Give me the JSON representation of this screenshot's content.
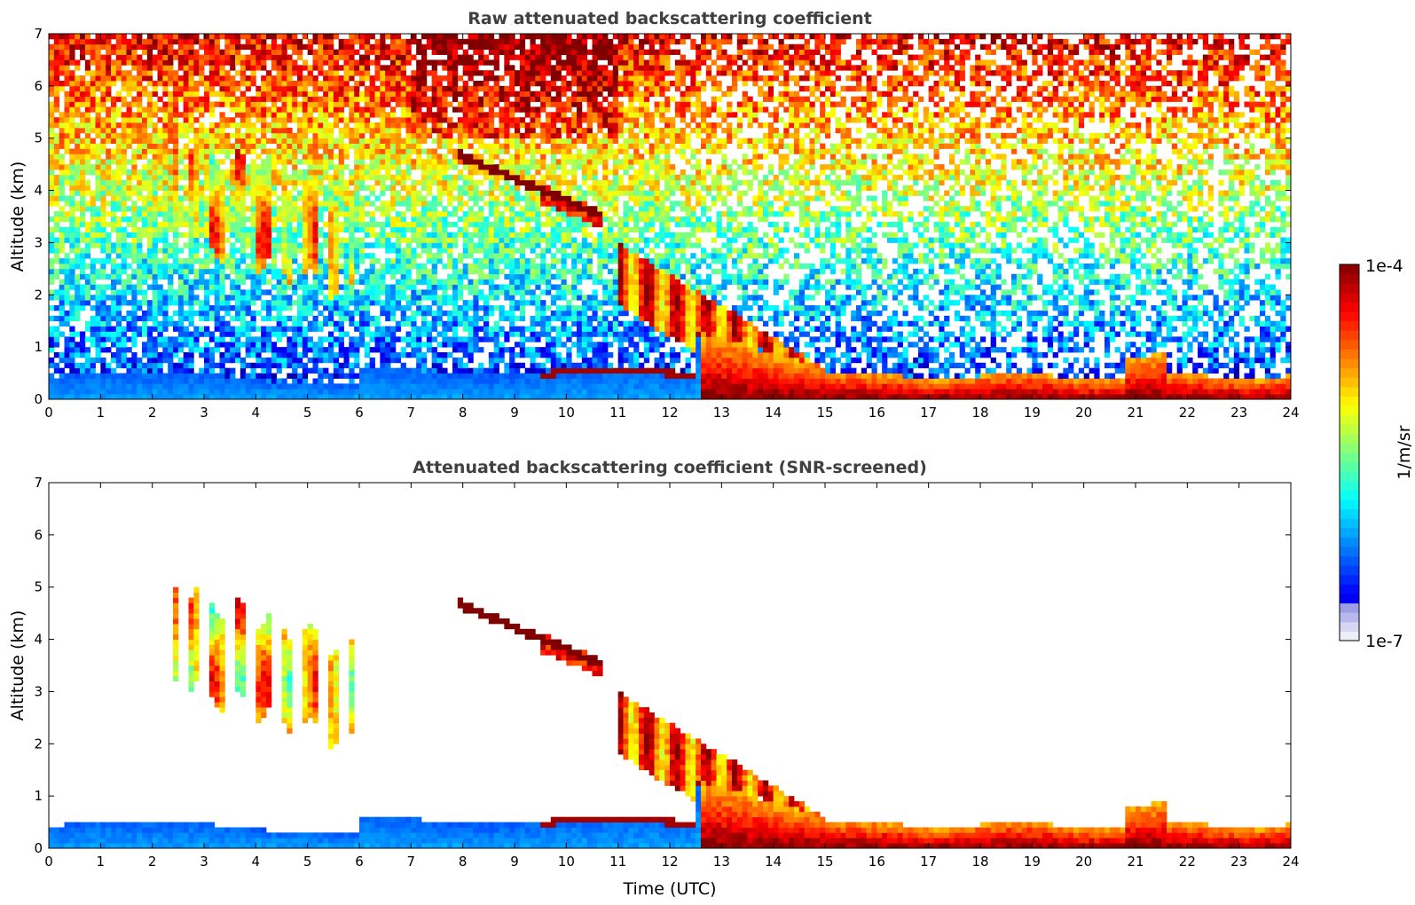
{
  "figure": {
    "xlabel": "Time (UTC)",
    "colorbar": {
      "label": "1/m/sr",
      "top_label": "1e-4",
      "bottom_label": "1e-7",
      "scale": "log",
      "colormap": "jet"
    }
  },
  "chart_data": [
    {
      "type": "heatmap",
      "title": "Raw attenuated backscattering coefficient",
      "xlabel": "",
      "ylabel": "Altitude (km)",
      "xlim": [
        0,
        24
      ],
      "ylim": [
        0,
        7
      ],
      "xticks": [
        "0",
        "1",
        "2",
        "3",
        "4",
        "5",
        "6",
        "7",
        "8",
        "9",
        "10",
        "11",
        "12",
        "13",
        "14",
        "15",
        "16",
        "17",
        "18",
        "19",
        "20",
        "21",
        "22",
        "23",
        "24"
      ],
      "yticks": [
        "0",
        "1",
        "2",
        "3",
        "4",
        "5",
        "6",
        "7"
      ],
      "grid": false,
      "features": [
        {
          "name": "boundary layer (night)",
          "t": [
            0,
            12.5
          ],
          "top_km": 0.5,
          "log_beta": -6.3
        },
        {
          "name": "boundary layer (day)",
          "t": [
            12.5,
            24
          ],
          "top_km": 0.6,
          "log_beta": -4.3
        },
        {
          "name": "cirrus/mid cloud",
          "t": [
            2.5,
            6
          ],
          "alt_km": [
            2,
            5
          ],
          "log_beta": -4.8
        },
        {
          "name": "liquid layer",
          "t": [
            7,
            10.8
          ],
          "alt_km": [
            3,
            4.7
          ],
          "log_beta": -4.0
        },
        {
          "name": "descending cloud",
          "t": [
            11,
            15
          ],
          "alt_km": [
            0.5,
            3
          ],
          "log_beta": -4.6
        }
      ]
    },
    {
      "type": "heatmap",
      "title": "Attenuated backscattering coefficient (SNR-screened)",
      "xlabel": "Time (UTC)",
      "ylabel": "Altitude (km)",
      "xlim": [
        0,
        24
      ],
      "ylim": [
        0,
        7
      ],
      "xticks": [
        "0",
        "1",
        "2",
        "3",
        "4",
        "5",
        "6",
        "7",
        "8",
        "9",
        "10",
        "11",
        "12",
        "13",
        "14",
        "15",
        "16",
        "17",
        "18",
        "19",
        "20",
        "21",
        "22",
        "23",
        "24"
      ],
      "yticks": [
        "0",
        "1",
        "2",
        "3",
        "4",
        "5",
        "6",
        "7"
      ],
      "grid": false,
      "features": [
        {
          "name": "boundary layer (night)",
          "t": [
            0,
            12.5
          ],
          "top_km": 0.5,
          "log_beta": -6.3
        },
        {
          "name": "boundary layer (day)",
          "t": [
            12.5,
            24
          ],
          "top_km": 0.6,
          "log_beta": -4.3
        },
        {
          "name": "cirrus/mid cloud",
          "t": [
            2.5,
            6
          ],
          "alt_km": [
            2,
            5
          ],
          "log_beta": -4.8
        },
        {
          "name": "liquid layer",
          "t": [
            7,
            10.8
          ],
          "alt_km": [
            3,
            4.7
          ],
          "log_beta": -4.0
        },
        {
          "name": "descending cloud",
          "t": [
            11,
            15
          ],
          "alt_km": [
            0.5,
            3
          ],
          "log_beta": -4.6
        }
      ]
    }
  ]
}
